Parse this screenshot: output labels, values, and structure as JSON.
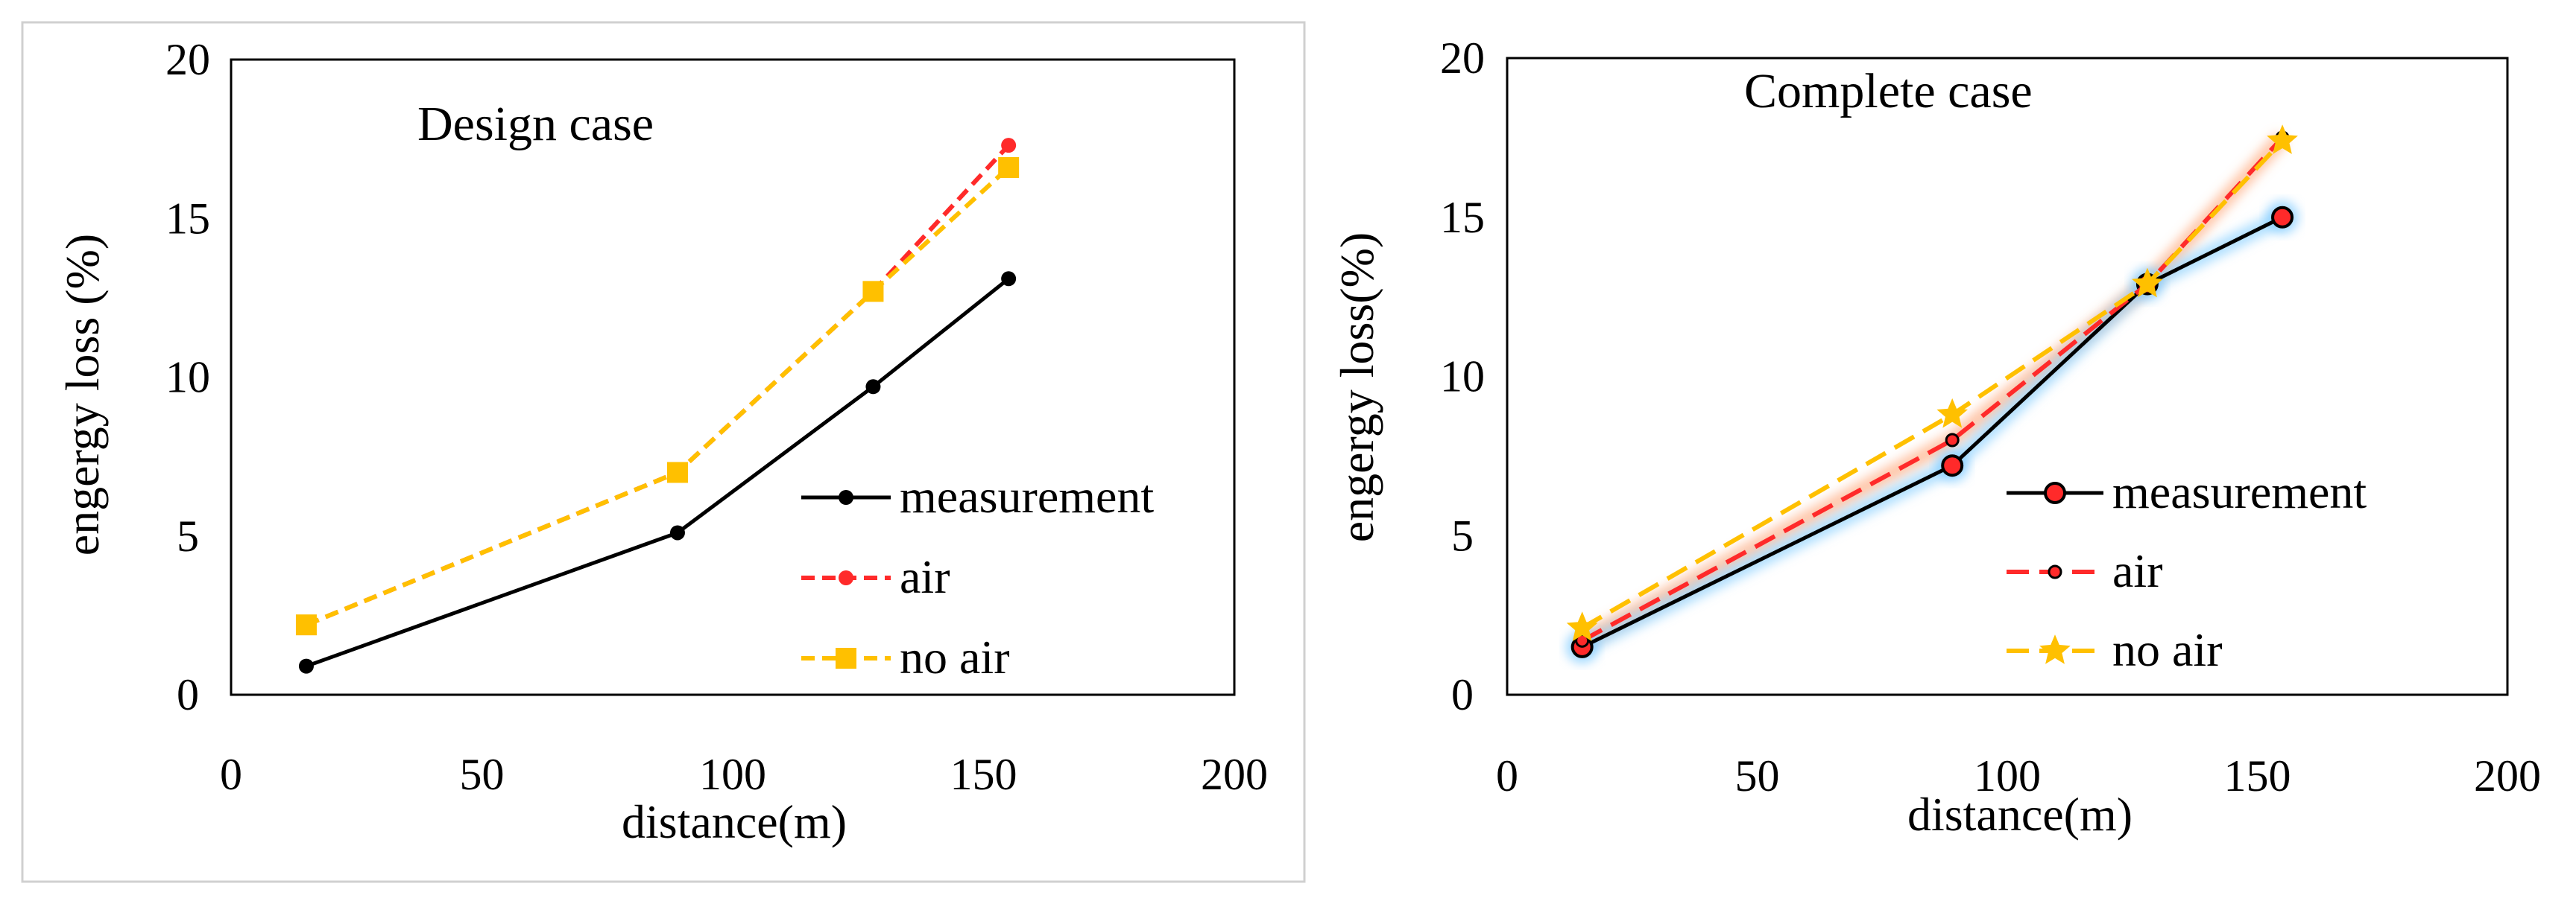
{
  "colors": {
    "measurement": "#000000",
    "air": "#ff2a2a",
    "no_air": "#ffc000",
    "glow_measurement": "#7ecbff",
    "glow_air": "#ff9a66"
  },
  "chart_data": [
    {
      "type": "line",
      "title": "Design case",
      "xlabel": "distance(m)",
      "ylabel": "engergy  loss (%)",
      "xlim": [
        0,
        200
      ],
      "ylim": [
        0,
        20
      ],
      "xticks": [
        0,
        50,
        100,
        150,
        200
      ],
      "yticks": [
        0,
        5,
        10,
        15,
        20
      ],
      "legend_position": "lower-right",
      "series": [
        {
          "name": "measurement",
          "style": "solid",
          "marker": "circle",
          "x": [
            15,
            89,
            128,
            155
          ],
          "values": [
            0.9,
            5.1,
            9.7,
            13.1
          ]
        },
        {
          "name": "air",
          "style": "dashed",
          "marker": "circle",
          "x": [
            15,
            89,
            128,
            155
          ],
          "values": [
            2.2,
            7.0,
            12.7,
            17.3
          ]
        },
        {
          "name": "no air",
          "style": "dashed",
          "marker": "square",
          "x": [
            15,
            89,
            128,
            155
          ],
          "values": [
            2.2,
            7.0,
            12.7,
            16.6
          ]
        }
      ]
    },
    {
      "type": "line",
      "title": "Complete case",
      "xlabel": "distance(m)",
      "ylabel": "engergy loss(%)",
      "xlim": [
        0,
        200
      ],
      "ylim": [
        0,
        20
      ],
      "xticks": [
        0,
        50,
        100,
        150,
        200
      ],
      "yticks": [
        0,
        5,
        10,
        15,
        20
      ],
      "legend_position": "lower-right",
      "series": [
        {
          "name": "measurement",
          "style": "solid",
          "marker": "circle",
          "x": [
            15,
            89,
            128,
            155
          ],
          "values": [
            1.5,
            7.2,
            12.9,
            15.0
          ]
        },
        {
          "name": "air",
          "style": "dashed",
          "marker": "circle",
          "x": [
            15,
            89,
            128,
            155
          ],
          "values": [
            1.7,
            8.0,
            12.9,
            17.5
          ]
        },
        {
          "name": "no air",
          "style": "dashed",
          "marker": "star",
          "x": [
            15,
            89,
            128,
            155
          ],
          "values": [
            2.1,
            8.8,
            12.9,
            17.4
          ]
        }
      ]
    }
  ]
}
